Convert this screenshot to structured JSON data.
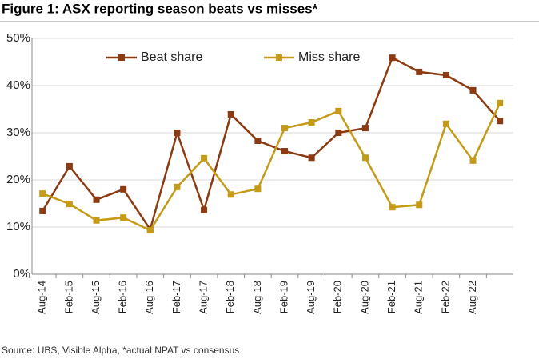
{
  "chart_data": {
    "type": "line",
    "title": "Figure 1: ASX reporting season beats vs misses*",
    "source": "Source: UBS, Visible Alpha, *actual NPAT vs consensus",
    "categories": [
      "Aug-14",
      "Feb-15",
      "Aug-15",
      "Feb-16",
      "Aug-16",
      "Feb-17",
      "Aug-17",
      "Feb-18",
      "Aug-18",
      "Feb-19",
      "Aug-19",
      "Feb-20",
      "Aug-20",
      "Feb-21",
      "Aug-21",
      "Feb-22",
      "Aug-22",
      null
    ],
    "series": [
      {
        "name": "Beat share",
        "color": "#8b3a12",
        "values": [
          13.4,
          22.9,
          15.8,
          18.0,
          9.5,
          30.0,
          13.6,
          33.9,
          28.3,
          26.1,
          24.7,
          30.0,
          31.0,
          45.9,
          42.9,
          42.2,
          39.0,
          32.5
        ]
      },
      {
        "name": "Miss share",
        "color": "#c49a16",
        "values": [
          17.1,
          14.9,
          11.4,
          12.0,
          9.3,
          18.5,
          24.6,
          16.9,
          18.1,
          31.0,
          32.2,
          34.6,
          24.7,
          14.2,
          14.7,
          31.9,
          24.1,
          36.3
        ]
      }
    ],
    "ylim": [
      0,
      50
    ],
    "yticks": [
      {
        "value": 0,
        "label": "0%"
      },
      {
        "value": 10,
        "label": "10%"
      },
      {
        "value": 20,
        "label": "20%"
      },
      {
        "value": 30,
        "label": "30%"
      },
      {
        "value": 40,
        "label": "40%"
      },
      {
        "value": 50,
        "label": "50%"
      }
    ],
    "grid": true,
    "legend": "top"
  }
}
